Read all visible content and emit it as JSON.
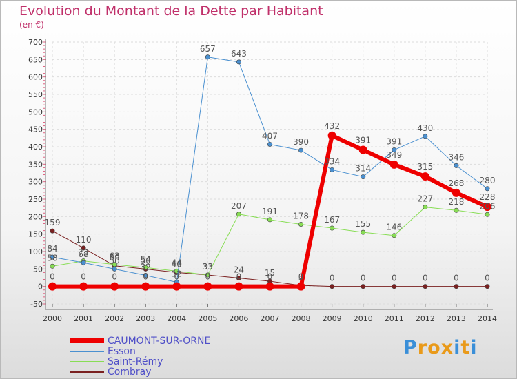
{
  "chart_data": {
    "type": "line",
    "title": "Evolution du Montant de la Dette par Habitant",
    "ylabel": "(en €)",
    "xlabel": "",
    "x": [
      "2000",
      "2001",
      "2002",
      "2003",
      "2004",
      "2005",
      "2006",
      "2007",
      "2008",
      "2009",
      "2010",
      "2011",
      "2012",
      "2013",
      "2014"
    ],
    "ylim": [
      -50,
      700
    ],
    "yticks": [
      -50,
      0,
      50,
      100,
      150,
      200,
      250,
      300,
      350,
      400,
      450,
      500,
      550,
      600,
      650,
      700
    ],
    "grid": true,
    "series": [
      {
        "name": "Combray",
        "color": "#7a2020",
        "width": 1,
        "values": [
          159,
          110,
          59,
          50,
          40,
          33,
          24,
          15,
          3,
          0,
          0,
          0,
          0,
          0,
          0
        ]
      },
      {
        "name": "Saint-Rémy",
        "color": "#88dd55",
        "width": 1,
        "values": [
          58,
          73,
          63,
          54,
          44,
          33,
          207,
          191,
          178,
          167,
          155,
          146,
          227,
          218,
          206
        ]
      },
      {
        "name": "Esson",
        "color": "#4a90d0",
        "width": 1,
        "values": [
          84,
          68,
          50,
          32,
          12,
          657,
          643,
          407,
          390,
          334,
          314,
          391,
          430,
          346,
          280
        ]
      },
      {
        "name": "CAUMONT-SUR-ORNE",
        "color": "#ee0000",
        "width": 6,
        "values": [
          0,
          0,
          0,
          0,
          0,
          0,
          0,
          0,
          0,
          432,
          391,
          349,
          315,
          268,
          228
        ]
      }
    ],
    "legend": [
      "CAUMONT-SUR-ORNE",
      "Esson",
      "Saint-Rémy",
      "Combray"
    ],
    "legend_position": "bottom-left"
  },
  "logo": {
    "letters": [
      "P",
      "r",
      "o",
      "x",
      "i",
      "t",
      "i"
    ],
    "colors": [
      "#3a8fd8",
      "#e99a1a",
      "#e99a1a",
      "#e99a1a",
      "#3a8fd8",
      "#e99a1a",
      "#3a8fd8"
    ]
  }
}
